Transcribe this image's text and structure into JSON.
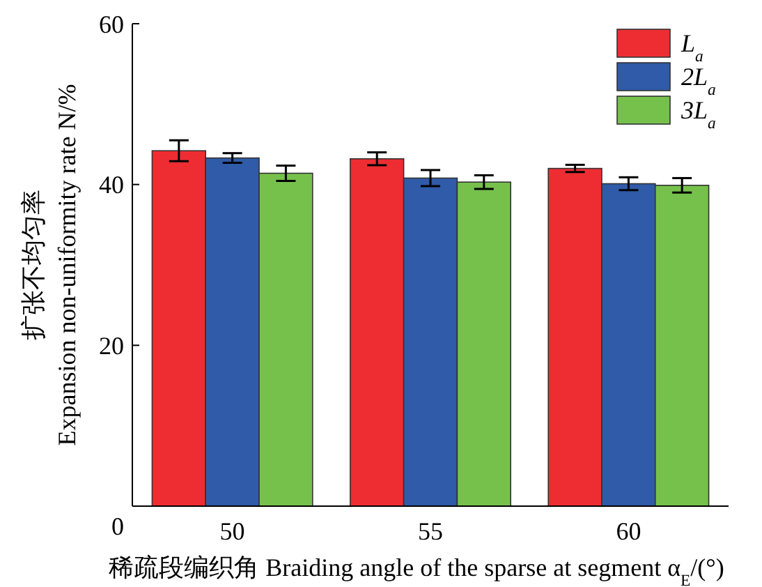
{
  "chart_data": {
    "type": "bar",
    "xlabel": "稀疏段编织角 Braiding angle of the sparse at segment α$_{E}$/(°)",
    "ylabel": "扩张不均匀率\nExpansion non-uniformity rate N/%",
    "categories": [
      "50",
      "55",
      "60"
    ],
    "ylim": [
      0,
      60
    ],
    "yticks": [
      0,
      20,
      40,
      60
    ],
    "legend": "top right",
    "series": [
      {
        "name": "L$_{a}$",
        "color": "#ee2d32",
        "values": [
          44.2,
          43.2,
          42.0
        ],
        "errors": [
          1.3,
          0.8,
          0.45
        ]
      },
      {
        "name": "2L$_{a}$",
        "color": "#2f5ba8",
        "values": [
          43.3,
          40.8,
          40.1
        ],
        "errors": [
          0.6,
          1.0,
          0.8
        ]
      },
      {
        "name": "3L$_{a}$",
        "color": "#76c14c",
        "values": [
          41.4,
          40.3,
          39.9
        ],
        "errors": [
          0.95,
          0.85,
          0.9
        ]
      }
    ]
  }
}
